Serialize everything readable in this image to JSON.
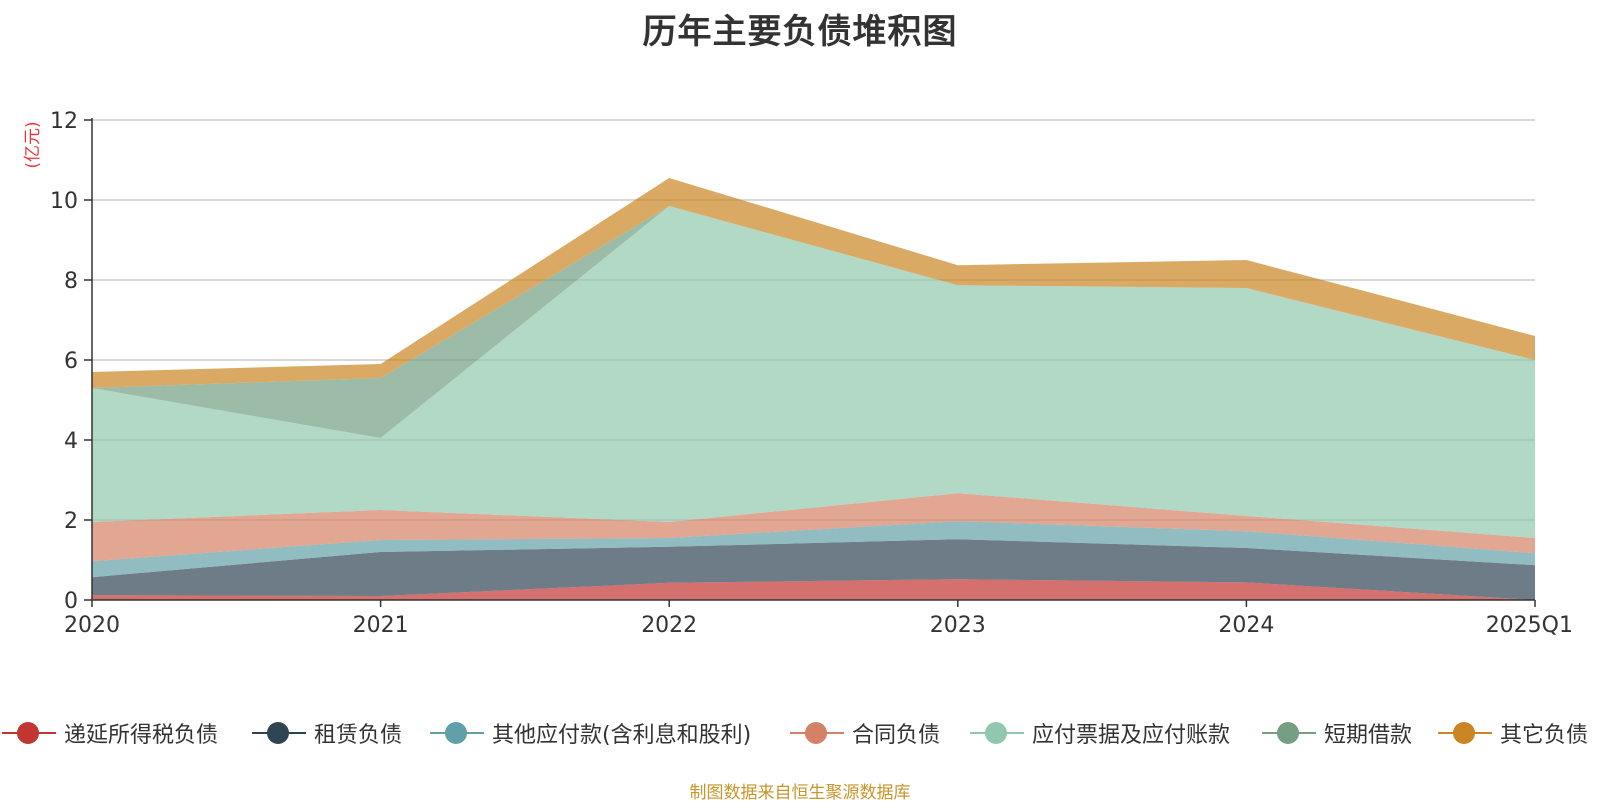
{
  "chart_data": {
    "type": "area",
    "stacked": true,
    "title": "历年主要负债堆积图",
    "ylabel": "(亿元)",
    "categories": [
      "2020",
      "2021",
      "2022",
      "2023",
      "2024",
      "2025Q1"
    ],
    "ylim": [
      0,
      12
    ],
    "yticks": [
      "0",
      "2",
      "4",
      "6",
      "8",
      "10",
      "12"
    ],
    "grid": true,
    "legend_position": "bottom",
    "series": [
      {
        "name": "递延所得税负债",
        "color": "#c23531",
        "values": [
          0.12,
          0.1,
          0.43,
          0.52,
          0.44,
          0.0
        ]
      },
      {
        "name": "租赁负债",
        "color": "#2f4554",
        "values": [
          0.45,
          1.1,
          0.9,
          1.0,
          0.86,
          0.87
        ]
      },
      {
        "name": "其他应付款(含利息和股利)",
        "color": "#61a0a8",
        "values": [
          0.4,
          0.3,
          0.22,
          0.45,
          0.42,
          0.3
        ]
      },
      {
        "name": "合同负债",
        "color": "#d48265",
        "values": [
          0.98,
          0.75,
          0.4,
          0.7,
          0.38,
          0.38
        ]
      },
      {
        "name": "应付票据及应付账款",
        "color": "#91c7ae",
        "values": [
          3.35,
          1.8,
          7.9,
          5.2,
          5.7,
          4.45
        ]
      },
      {
        "name": "短期借款",
        "color": "#749f83",
        "values": [
          0.0,
          1.5,
          0.0,
          0.0,
          0.0,
          0.0
        ]
      },
      {
        "name": "其它负债",
        "color": "#ca8622",
        "values": [
          0.4,
          0.35,
          0.7,
          0.5,
          0.7,
          0.6
        ]
      }
    ]
  },
  "source_note": "制图数据来自恒生聚源数据库"
}
